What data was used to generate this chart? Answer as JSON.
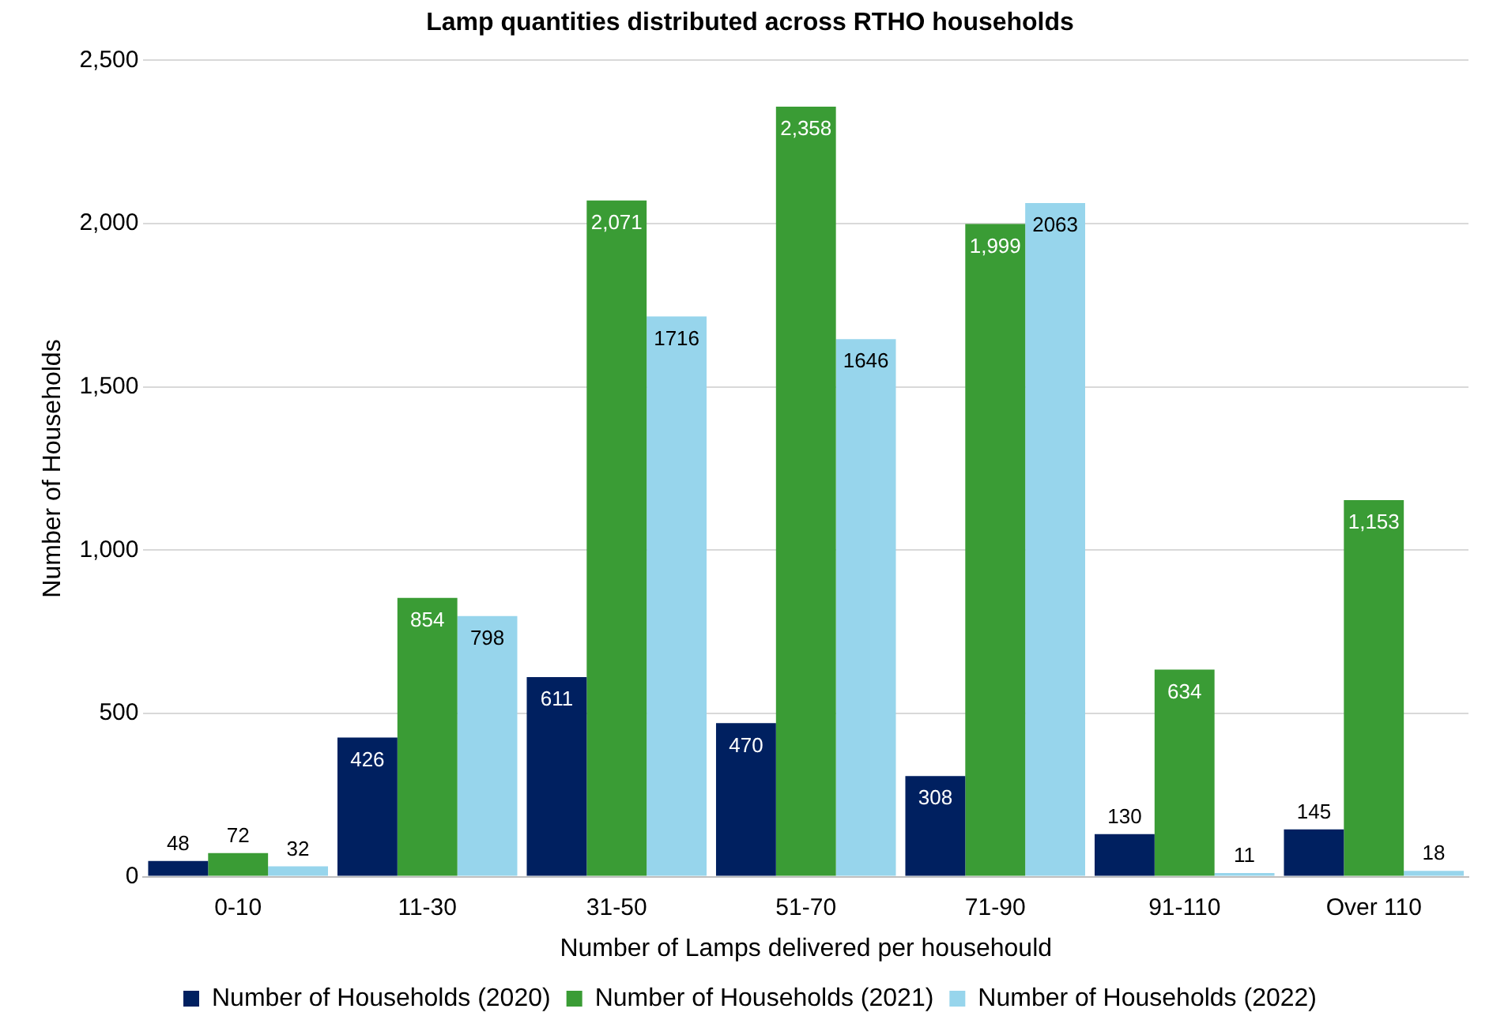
{
  "chart_data": {
    "type": "bar",
    "title": "Lamp quantities distributed across RTHO households",
    "xlabel": "Number of Lamps delivered per househould",
    "ylabel": "Number of Households",
    "categories": [
      "0-10",
      "11-30",
      "31-50",
      "51-70",
      "71-90",
      "91-110",
      "Over 110"
    ],
    "series": [
      {
        "name": "Number of Households (2020)",
        "color": "#002060",
        "values": [
          48,
          426,
          611,
          470,
          308,
          130,
          145
        ],
        "value_labels": [
          "48",
          "426",
          "611",
          "470",
          "308",
          "130",
          "145"
        ]
      },
      {
        "name": "Number of Households (2021)",
        "color": "#3a9c35",
        "values": [
          72,
          854,
          2071,
          2358,
          1999,
          634,
          1153
        ],
        "value_labels": [
          "72",
          "854",
          "2,071",
          "2,358",
          "1,999",
          "634",
          "1,153"
        ]
      },
      {
        "name": "Number of Households (2022)",
        "color": "#97d5ec",
        "values": [
          32,
          798,
          1716,
          1646,
          2063,
          11,
          18
        ],
        "value_labels": [
          "32",
          "798",
          "1716",
          "1646",
          "2063",
          "11",
          "18"
        ]
      }
    ],
    "ylim": [
      0,
      2500
    ],
    "yticks": [
      0,
      500,
      {
        "value": 1000,
        "label": "1,000"
      },
      {
        "value": 1500,
        "label": "1,500"
      },
      {
        "value": 2000,
        "label": "2,000"
      },
      {
        "value": 2500,
        "label": "2,500"
      }
    ],
    "grid": "y",
    "legend": "bottom"
  }
}
